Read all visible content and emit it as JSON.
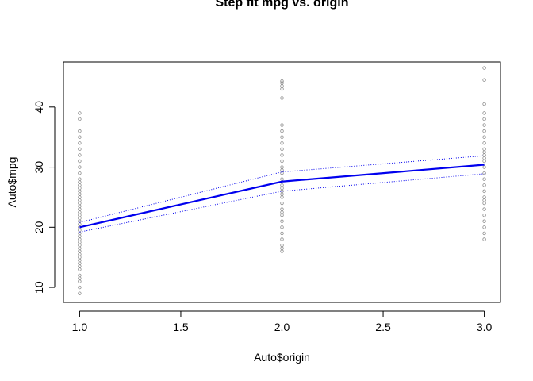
{
  "chart_data": {
    "type": "scatter",
    "title": "Step fit mpg vs. origin",
    "xlabel": "Auto$origin",
    "ylabel": "Auto$mpg",
    "xlim": [
      0.92,
      3.08
    ],
    "ylim": [
      7.5,
      47.5
    ],
    "xticks": [
      1.0,
      1.5,
      2.0,
      2.5,
      3.0
    ],
    "xtick_labels": [
      "1.0",
      "1.5",
      "2.0",
      "2.5",
      "3.0"
    ],
    "yticks": [
      10,
      20,
      30,
      40
    ],
    "ytick_labels": [
      "10",
      "20",
      "30",
      "40"
    ],
    "grid": false,
    "colors": {
      "points": "#8c8c8c",
      "fit": "#0000ee",
      "bands": "#0000ee",
      "frame": "#000000"
    },
    "points": {
      "name": "",
      "groups": [
        {
          "x": 1.0,
          "y": [
            9,
            10,
            11,
            11.5,
            12,
            13,
            13.5,
            14,
            14.5,
            15,
            15.5,
            16,
            16.5,
            17,
            17.5,
            18,
            18.5,
            19,
            19.5,
            20,
            20.5,
            21,
            21.5,
            22,
            22.5,
            23,
            23.5,
            24,
            24.5,
            25,
            25.5,
            26,
            26.5,
            27,
            27.5,
            28,
            29,
            30,
            31,
            32,
            33,
            34,
            35,
            36,
            38,
            39
          ]
        },
        {
          "x": 2.0,
          "y": [
            16,
            16.5,
            17,
            18,
            19,
            20,
            21,
            22,
            22.5,
            23,
            24,
            25,
            25.5,
            26,
            26.5,
            27,
            28,
            29,
            29.5,
            30,
            31,
            32,
            33,
            34,
            35,
            36,
            37,
            41.5,
            43,
            43.5,
            44,
            44.3
          ]
        },
        {
          "x": 3.0,
          "y": [
            18,
            19,
            20,
            21,
            22,
            23,
            24,
            24.5,
            25,
            26,
            27,
            28,
            29,
            30,
            31,
            31.5,
            32,
            32.5,
            33,
            34,
            35,
            36,
            37,
            38,
            39,
            40.5,
            44.5,
            46.5
          ]
        }
      ]
    },
    "series": [
      {
        "name": "",
        "kind": "fit",
        "x": [
          1.0,
          2.0,
          3.0
        ],
        "y": [
          20.0,
          27.6,
          30.4
        ]
      },
      {
        "name": "",
        "kind": "upper",
        "x": [
          1.0,
          2.0,
          3.0
        ],
        "y": [
          20.8,
          29.2,
          31.9
        ]
      },
      {
        "name": "",
        "kind": "lower",
        "x": [
          1.0,
          2.0,
          3.0
        ],
        "y": [
          19.2,
          26.0,
          28.9
        ]
      }
    ]
  }
}
